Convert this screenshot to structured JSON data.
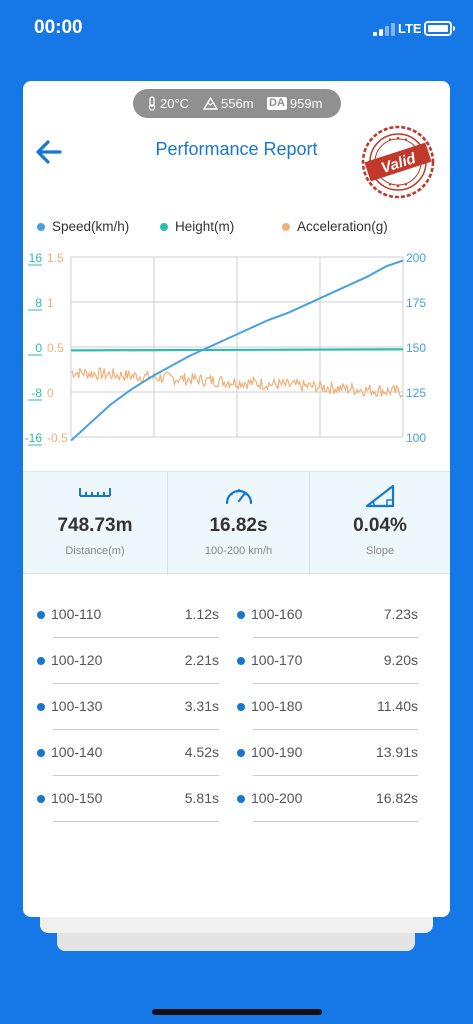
{
  "status_bar": {
    "time": "00:00",
    "network": "LTE"
  },
  "environment": {
    "temperature": "20°C",
    "altitude": "556m",
    "da_badge": "DA",
    "density_altitude": "959m"
  },
  "header": {
    "title": "Performance Report",
    "stamp_text": "Valid",
    "back_icon": "arrow-left-icon",
    "stamp_icon": "valid-stamp-icon"
  },
  "legend": [
    {
      "label": "Speed(km/h)",
      "color": "#4a9fe0"
    },
    {
      "label": "Height(m)",
      "color": "#2bbdab"
    },
    {
      "label": "Acceleration(g)",
      "color": "#f0b07a"
    }
  ],
  "chart_data": {
    "type": "line",
    "series": [
      {
        "name": "Speed(km/h)",
        "axis": "right",
        "color": "#4a9fe0",
        "x": [
          0,
          0.5,
          1,
          1.5,
          2,
          2.5,
          3,
          4,
          5,
          6,
          7,
          8,
          9,
          10,
          11,
          12,
          13,
          14,
          15,
          16,
          16.82
        ],
        "values": [
          98,
          103,
          108,
          113,
          118,
          122,
          126,
          133,
          139,
          145,
          150,
          155,
          160,
          165,
          169,
          174,
          179,
          184,
          189,
          195,
          198
        ]
      },
      {
        "name": "Height(m)",
        "axis": "left-outer",
        "color": "#2bbdab",
        "x": [
          0,
          16.82
        ],
        "values": [
          -0.6,
          -0.4
        ]
      },
      {
        "name": "Acceleration(g)",
        "axis": "left-inner",
        "color": "#f0b07a",
        "x_range": [
          0,
          16.82
        ],
        "approx_start": 0.22,
        "approx_end": 0.0,
        "noise": 0.07
      }
    ],
    "axes": {
      "left_outer": {
        "ticks": [
          "16",
          "8",
          "0",
          "-8",
          "-16"
        ],
        "color": "#2bbdab"
      },
      "left_inner": {
        "ticks": [
          "1.5",
          "1",
          "0.5",
          "0",
          "-0.5"
        ],
        "color": "#f0b07a"
      },
      "right": {
        "ticks": [
          "200",
          "175",
          "150",
          "125",
          "100"
        ],
        "color": "#4a9fe0"
      }
    },
    "grid": true
  },
  "stats": [
    {
      "icon": "ruler-icon",
      "value": "748.73m",
      "label": "Distance(m)"
    },
    {
      "icon": "speedometer-icon",
      "value": "16.82s",
      "label": "100-200 km/h"
    },
    {
      "icon": "slope-icon",
      "value": "0.04%",
      "label": "Slope"
    }
  ],
  "splits_left": [
    {
      "label": "100-110",
      "value": "1.12s"
    },
    {
      "label": "100-120",
      "value": "2.21s"
    },
    {
      "label": "100-130",
      "value": "3.31s"
    },
    {
      "label": "100-140",
      "value": "4.52s"
    },
    {
      "label": "100-150",
      "value": "5.81s"
    }
  ],
  "splits_right": [
    {
      "label": "100-160",
      "value": "7.23s"
    },
    {
      "label": "100-170",
      "value": "9.20s"
    },
    {
      "label": "100-180",
      "value": "11.40s"
    },
    {
      "label": "100-190",
      "value": "13.91s"
    },
    {
      "label": "100-200",
      "value": "16.82s"
    }
  ]
}
